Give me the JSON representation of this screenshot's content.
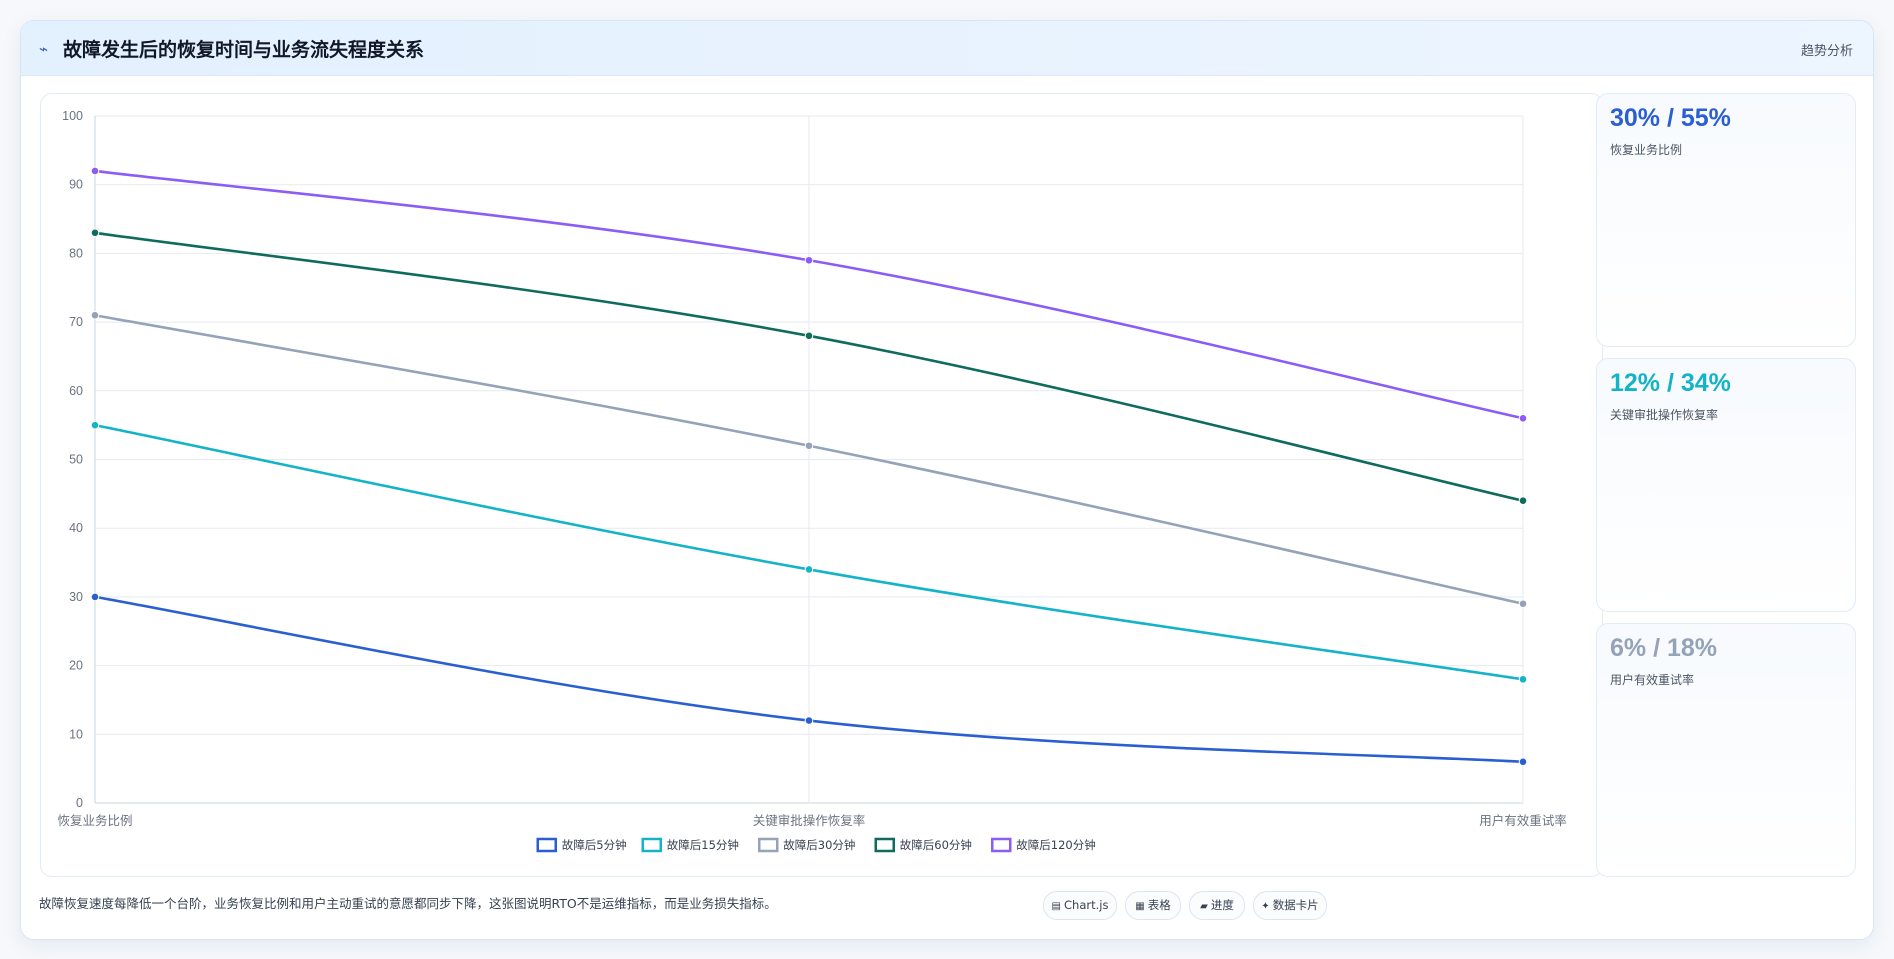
{
  "header": {
    "icon": "chart-line-icon",
    "title": "故障发生后的恢复时间与业务流失程度关系",
    "tag": "趋势分析"
  },
  "side_cards": [
    {
      "value": "30% / 55%",
      "label": "恢复业务比例",
      "color": "#2a5fd1"
    },
    {
      "value": "12% / 34%",
      "label": "关键审批操作恢复率",
      "color": "#14b3c7"
    },
    {
      "value": "6% / 18%",
      "label": "用户有效重试率",
      "color": "#94a3b8"
    }
  ],
  "footnote": "故障恢复速度每降低一个台阶，业务恢复比例和用户主动重试的意愿都同步下降，这张图说明RTO不是运维指标，而是业务损失指标。",
  "chips": [
    {
      "icon": "chart-icon",
      "label": "Chart.js"
    },
    {
      "icon": "table-icon",
      "label": "表格"
    },
    {
      "icon": "progress-icon",
      "label": "进度"
    },
    {
      "icon": "card-icon",
      "label": "数据卡片"
    }
  ],
  "chart_data": {
    "type": "line",
    "categories": [
      "恢复业务比例",
      "关键审批操作恢复率",
      "用户有效重试率"
    ],
    "ylim": [
      0,
      100
    ],
    "yticks": [
      0,
      10,
      20,
      30,
      40,
      50,
      60,
      70,
      80,
      90,
      100
    ],
    "grid": true,
    "legend_position": "bottom",
    "series": [
      {
        "name": "故障后5分钟",
        "values": [
          30,
          12,
          6
        ],
        "color": "#2a5fd1"
      },
      {
        "name": "故障后15分钟",
        "values": [
          55,
          34,
          18
        ],
        "color": "#14b3c7"
      },
      {
        "name": "故障后30分钟",
        "values": [
          71,
          52,
          29
        ],
        "color": "#94a3b8"
      },
      {
        "name": "故障后60分钟",
        "values": [
          83,
          68,
          44
        ],
        "color": "#0f6b5e"
      },
      {
        "name": "故障后120分钟",
        "values": [
          92,
          79,
          56
        ],
        "color": "#8b5cf6"
      }
    ]
  }
}
